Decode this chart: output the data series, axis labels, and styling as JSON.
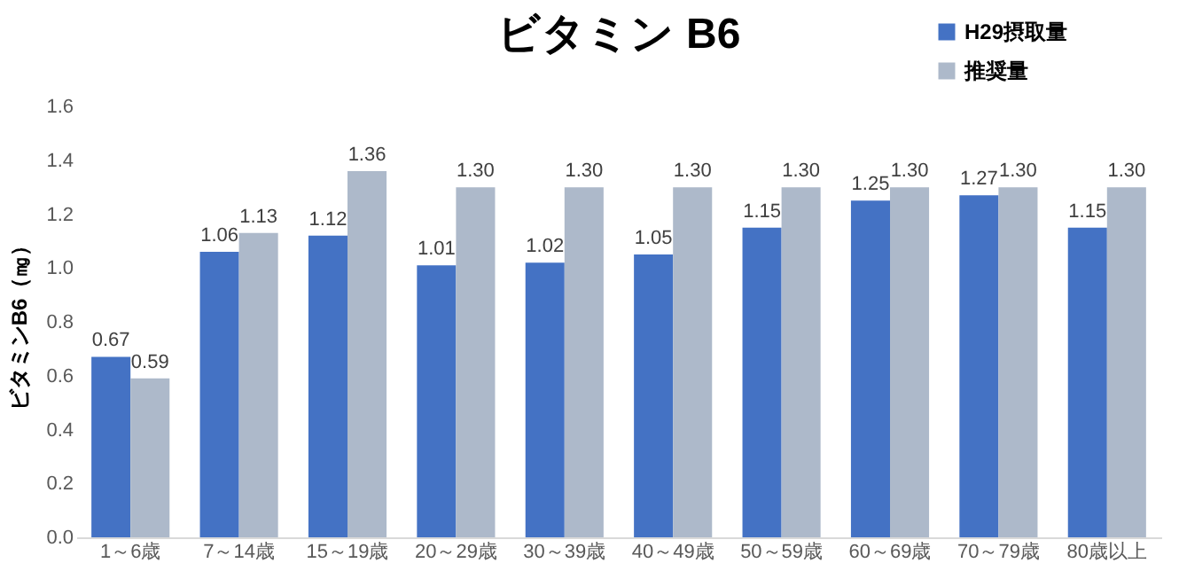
{
  "chart_data": {
    "type": "bar",
    "title": "ビタミン B6",
    "ylabel": "ビタミンB6（㎎）",
    "categories": [
      "1～6歳",
      "7～14歳",
      "15～19歳",
      "20～29歳",
      "30～39歳",
      "40～49歳",
      "50～59歳",
      "60～69歳",
      "70～79歳",
      "80歳以上"
    ],
    "series": [
      {
        "name": "H29摂取量",
        "color": "#4472c4",
        "values": [
          0.67,
          1.06,
          1.12,
          1.01,
          1.02,
          1.05,
          1.15,
          1.25,
          1.27,
          1.15
        ],
        "value_labels": [
          "0.67",
          "1.06",
          "1.12",
          "1.01",
          "1.02",
          "1.05",
          "1.15",
          "1.25",
          "1.27",
          "1.15"
        ]
      },
      {
        "name": "推奨量",
        "color": "#adb9ca",
        "values": [
          0.59,
          1.13,
          1.36,
          1.3,
          1.3,
          1.3,
          1.3,
          1.3,
          1.3,
          1.3
        ],
        "value_labels": [
          "0.59",
          "1.13",
          "1.36",
          "1.30",
          "1.30",
          "1.30",
          "1.30",
          "1.30",
          "1.30",
          "1.30"
        ]
      }
    ],
    "ylim": [
      0,
      1.6
    ],
    "yticks": [
      {
        "value": 0,
        "label": "0.0"
      },
      {
        "value": 0.2,
        "label": "0.2"
      },
      {
        "value": 0.4,
        "label": "0.4"
      },
      {
        "value": 0.6,
        "label": "0.6"
      },
      {
        "value": 0.8,
        "label": "0.8"
      },
      {
        "value": 1,
        "label": "1.0"
      },
      {
        "value": 1.2,
        "label": "1.2"
      },
      {
        "value": 1.4,
        "label": "1.4"
      },
      {
        "value": 1.6,
        "label": "1.6"
      }
    ],
    "grid": false,
    "legend": "top right"
  }
}
